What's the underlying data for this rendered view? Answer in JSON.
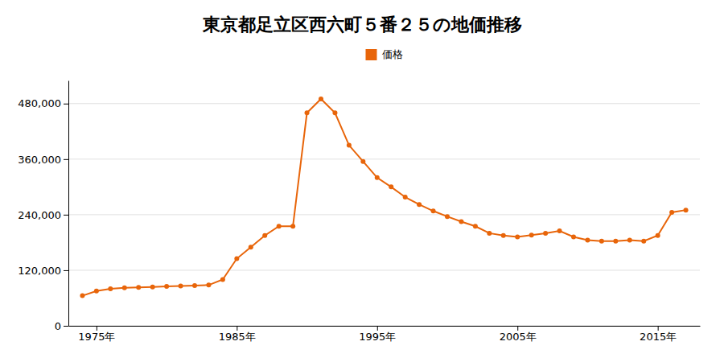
{
  "chart_data": {
    "type": "line",
    "title": "東京都足立区西六町５番２５の地価推移",
    "x": [
      1974,
      1975,
      1976,
      1977,
      1978,
      1979,
      1980,
      1981,
      1982,
      1983,
      1984,
      1985,
      1986,
      1987,
      1988,
      1989,
      1990,
      1991,
      1992,
      1993,
      1994,
      1995,
      1996,
      1997,
      1998,
      1999,
      2000,
      2001,
      2002,
      2003,
      2004,
      2005,
      2006,
      2007,
      2008,
      2009,
      2010,
      2011,
      2012,
      2013,
      2014,
      2015,
      2016,
      2017
    ],
    "series": [
      {
        "name": "価格",
        "color": "#E8650A",
        "marker": "circle",
        "values": [
          65000,
          75000,
          80000,
          82000,
          83000,
          84000,
          85000,
          86000,
          87000,
          88000,
          100000,
          145000,
          170000,
          195000,
          215000,
          215000,
          460000,
          490000,
          460000,
          390000,
          355000,
          320000,
          300000,
          278000,
          262000,
          248000,
          236000,
          225000,
          215000,
          200000,
          195000,
          192000,
          196000,
          200000,
          205000,
          192000,
          185000,
          183000,
          183000,
          185000,
          183000,
          195000,
          245000,
          250000
        ]
      }
    ],
    "xlim": [
      1973,
      2018
    ],
    "xticks": [
      {
        "value": 1975,
        "label": "1975年"
      },
      {
        "value": 1985,
        "label": "1985年"
      },
      {
        "value": 1995,
        "label": "1995年"
      },
      {
        "value": 2005,
        "label": "2005年"
      },
      {
        "value": 2015,
        "label": "2015年"
      }
    ],
    "ylim": [
      0,
      530000
    ],
    "yticks": [
      0,
      {
        "value": 120000,
        "label": "120,000"
      },
      {
        "value": 240000,
        "label": "240,000"
      },
      {
        "value": 360000,
        "label": "360,000"
      },
      {
        "value": 480000,
        "label": "480,000"
      }
    ],
    "grid": true,
    "legend": "top"
  }
}
